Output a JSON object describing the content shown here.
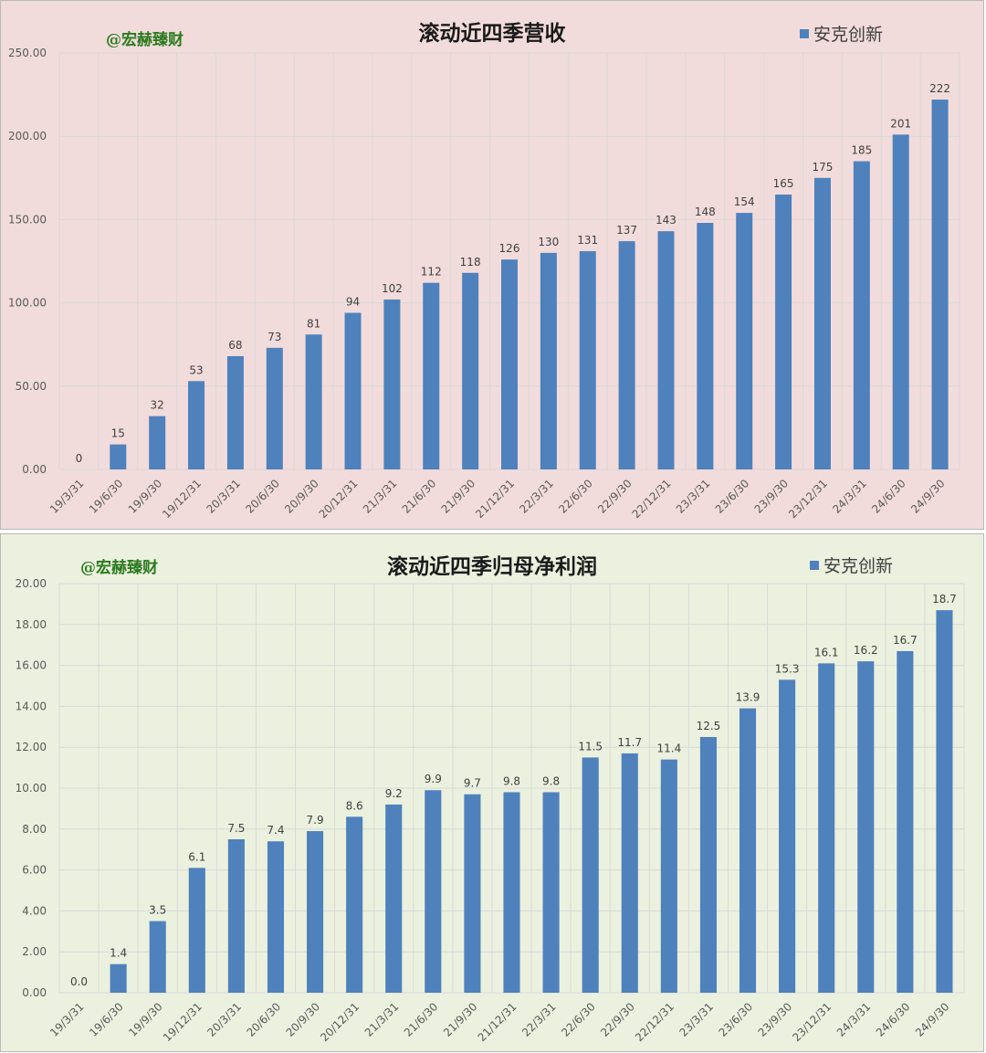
{
  "colors": {
    "bar": "#4f81bd",
    "grid": "#d9d9d9",
    "axis_text": "#595959",
    "label_text": "#404040"
  },
  "chart_data": [
    {
      "type": "bar",
      "title": "滚动近四季营收",
      "watermark": "@宏赫臻财",
      "legend_position": "top-right",
      "grid": true,
      "series": [
        {
          "name": "安克创新",
          "values": [
            0,
            15,
            32,
            53,
            68,
            73,
            81,
            94,
            102,
            112,
            118,
            126,
            130,
            131,
            137,
            143,
            148,
            154,
            165,
            175,
            185,
            201,
            222
          ]
        }
      ],
      "data_labels": [
        "0",
        "15",
        "32",
        "53",
        "68",
        "73",
        "81",
        "94",
        "102",
        "112",
        "118",
        "126",
        "130",
        "131",
        "137",
        "143",
        "148",
        "154",
        "165",
        "175",
        "185",
        "201",
        "222"
      ],
      "categories": [
        "19/3/31",
        "19/6/30",
        "19/9/30",
        "19/12/31",
        "20/3/31",
        "20/6/30",
        "20/9/30",
        "20/12/31",
        "21/3/31",
        "21/6/30",
        "21/9/30",
        "21/12/31",
        "22/3/31",
        "22/6/30",
        "22/9/30",
        "22/12/31",
        "23/3/31",
        "23/6/30",
        "23/9/30",
        "23/12/31",
        "24/3/31",
        "24/6/30",
        "24/9/30"
      ],
      "ylim": [
        0,
        250
      ],
      "yticks": [
        "0.00",
        "50.00",
        "100.00",
        "150.00",
        "200.00",
        "250.00"
      ]
    },
    {
      "type": "bar",
      "title": "滚动近四季归母净利润",
      "watermark": "@宏赫臻财",
      "legend_position": "top-right",
      "grid": true,
      "series": [
        {
          "name": "安克创新",
          "values": [
            0.0,
            1.4,
            3.5,
            6.1,
            7.5,
            7.4,
            7.9,
            8.6,
            9.2,
            9.9,
            9.7,
            9.8,
            9.8,
            11.5,
            11.7,
            11.4,
            12.5,
            13.9,
            15.3,
            16.1,
            16.2,
            16.7,
            18.7
          ]
        }
      ],
      "data_labels": [
        "0.0",
        "1.4",
        "3.5",
        "6.1",
        "7.5",
        "7.4",
        "7.9",
        "8.6",
        "9.2",
        "9.9",
        "9.7",
        "9.8",
        "9.8",
        "11.5",
        "11.7",
        "11.4",
        "12.5",
        "13.9",
        "15.3",
        "16.1",
        "16.2",
        "16.7",
        "18.7"
      ],
      "categories": [
        "19/3/31",
        "19/6/30",
        "19/9/30",
        "19/12/31",
        "20/3/31",
        "20/6/30",
        "20/9/30",
        "20/12/31",
        "21/3/31",
        "21/6/30",
        "21/9/30",
        "21/12/31",
        "22/3/31",
        "22/6/30",
        "22/9/30",
        "22/12/31",
        "23/3/31",
        "23/6/30",
        "23/9/30",
        "23/12/31",
        "24/3/31",
        "24/6/30",
        "24/9/30"
      ],
      "ylim": [
        0,
        20
      ],
      "yticks": [
        "0.00",
        "2.00",
        "4.00",
        "6.00",
        "8.00",
        "10.00",
        "12.00",
        "14.00",
        "16.00",
        "18.00",
        "20.00"
      ]
    }
  ]
}
